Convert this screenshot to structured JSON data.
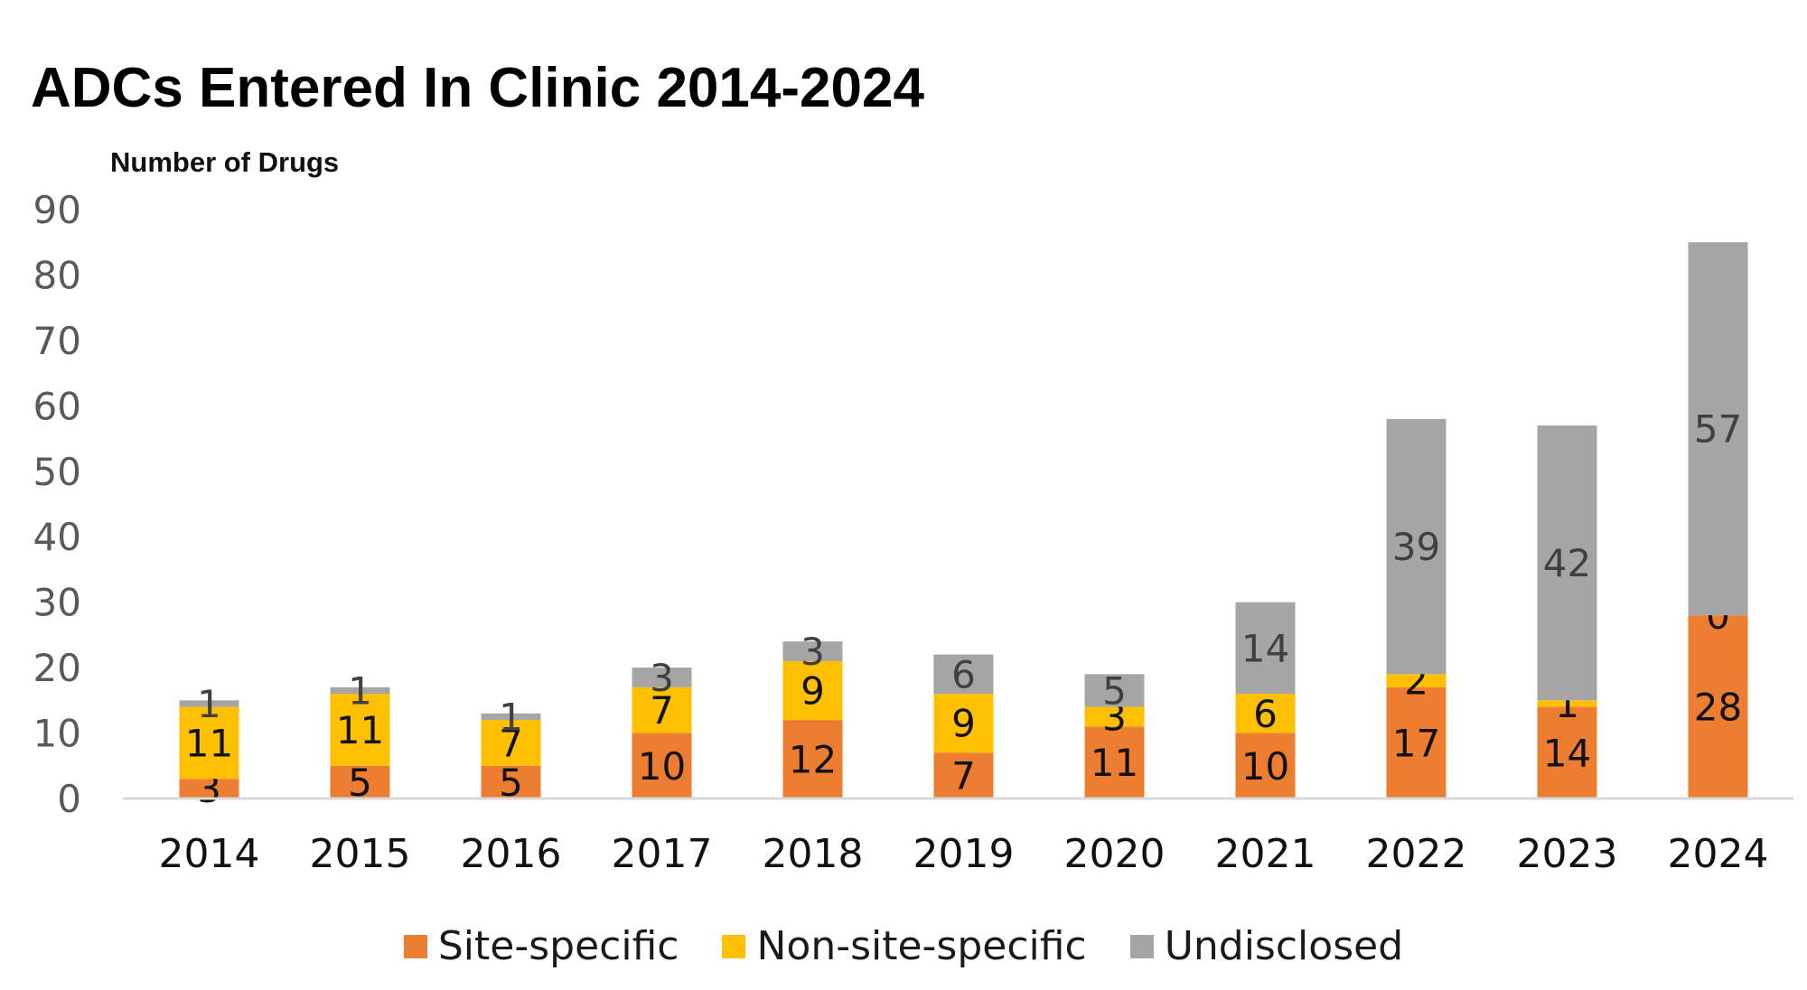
{
  "chart_data": {
    "type": "bar",
    "stacked": true,
    "title": "ADCs Entered In Clinic 2014-2024",
    "ylabel": "Number of Drugs",
    "xlabel": "",
    "ylim": [
      0,
      90
    ],
    "yticks": [
      0,
      10,
      20,
      30,
      40,
      50,
      60,
      70,
      80,
      90
    ],
    "grid": false,
    "legend_position": "bottom",
    "categories": [
      "2014",
      "2015",
      "2016",
      "2017",
      "2018",
      "2019",
      "2020",
      "2021",
      "2022",
      "2023",
      "2024"
    ],
    "series": [
      {
        "name": "Site-specific",
        "color": "#ED7D31",
        "values": [
          3,
          5,
          5,
          10,
          12,
          7,
          11,
          10,
          17,
          14,
          28
        ]
      },
      {
        "name": "Non-site-specific",
        "color": "#FFC000",
        "values": [
          11,
          11,
          7,
          7,
          9,
          9,
          3,
          6,
          2,
          1,
          0
        ]
      },
      {
        "name": "Undisclosed",
        "color": "#A5A5A5",
        "values": [
          1,
          1,
          1,
          3,
          3,
          6,
          5,
          14,
          39,
          42,
          57
        ]
      }
    ]
  }
}
